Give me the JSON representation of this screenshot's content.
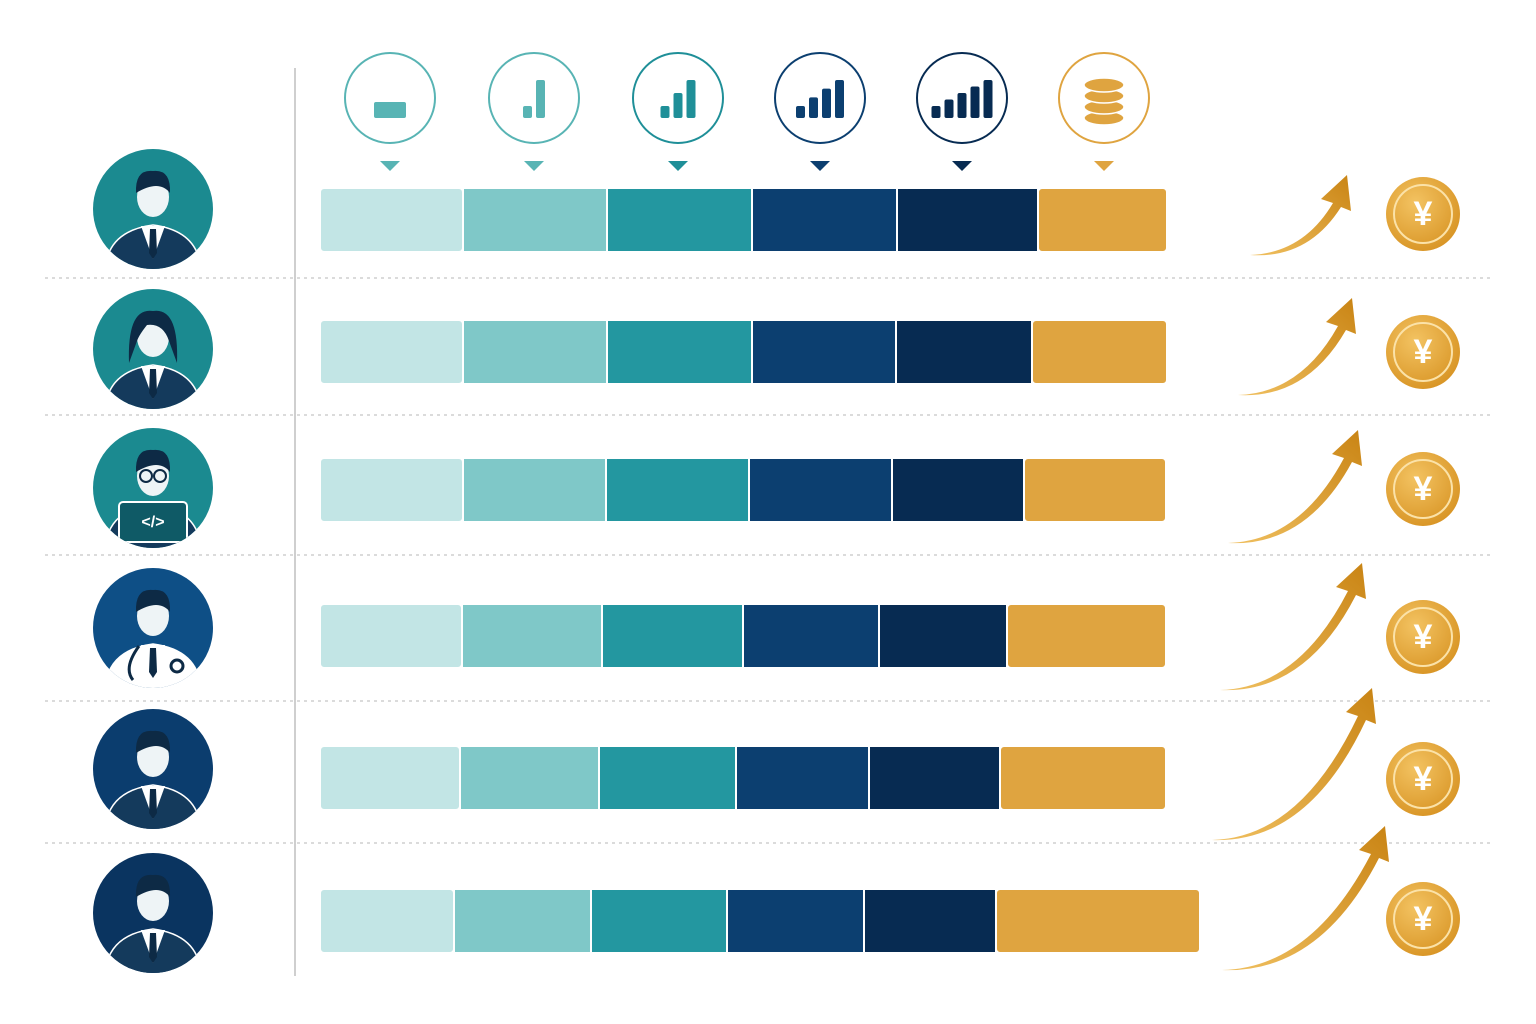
{
  "chart_data": {
    "type": "stacked-bar-horizontal",
    "categories": [
      null,
      null,
      null,
      null,
      null,
      null
    ],
    "xlim": [
      0,
      880
    ],
    "series": [
      {
        "color": "#c2e5e5",
        "values": [
          143,
          143,
          143,
          142,
          140,
          134
        ]
      },
      {
        "color": "#7fc8c8",
        "values": [
          144,
          144,
          143,
          140,
          139,
          137
        ]
      },
      {
        "color": "#2397a0",
        "values": [
          145,
          145,
          143,
          141,
          137,
          136
        ]
      },
      {
        "color": "#0c3f70",
        "values": [
          145,
          144,
          143,
          136,
          133,
          137
        ]
      },
      {
        "color": "#072b52",
        "values": [
          141,
          136,
          132,
          128,
          131,
          132
        ]
      },
      {
        "color": "#dfa440",
        "values": [
          129,
          135,
          142,
          159,
          166,
          204
        ]
      }
    ],
    "coin_labels": [
      "¥",
      "¥",
      "¥",
      "¥",
      "¥",
      "¥"
    ],
    "laptop_label": "</>"
  }
}
